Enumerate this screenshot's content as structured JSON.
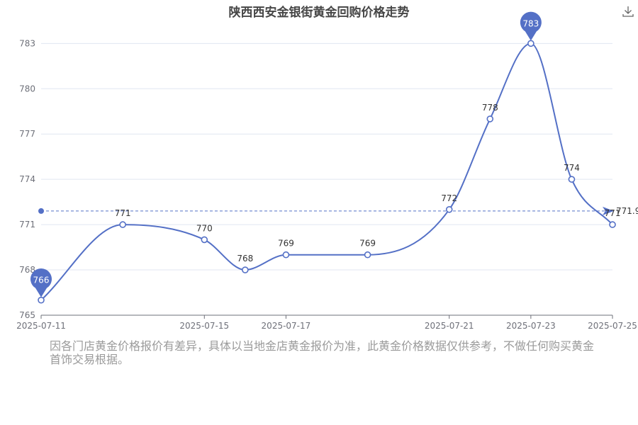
{
  "chart_data": {
    "type": "line",
    "title": "陕西西安金银街黄金回购价格走势",
    "x": [
      "2025-07-11",
      "2025-07-13",
      "2025-07-15",
      "2025-07-16",
      "2025-07-17",
      "2025-07-19",
      "2025-07-21",
      "2025-07-22",
      "2025-07-23",
      "2025-07-24",
      "2025-07-25"
    ],
    "values": [
      766,
      771,
      770,
      768,
      769,
      769,
      772,
      778,
      783,
      774,
      771
    ],
    "x_tick_labels": [
      "2025-07-11",
      "2025-07-15",
      "2025-07-17",
      "2025-07-21",
      "2025-07-23",
      "2025-07-25"
    ],
    "y_ticks": [
      765,
      768,
      771,
      774,
      777,
      780,
      783
    ],
    "ylim": [
      765,
      784
    ],
    "xlim": [
      "2025-07-11",
      "2025-07-25"
    ],
    "smooth": true,
    "grid": true,
    "color": "#5470c6",
    "max_marker": {
      "x": "2025-07-23",
      "value": 783,
      "label": "783"
    },
    "min_marker": {
      "x": "2025-07-11",
      "value": 766,
      "label": "766"
    },
    "average_line": {
      "value": 771.9,
      "label": "771.9"
    }
  },
  "note": "因各门店黄金价格报价有差异，具体以当地金店黄金报价为准，此黄金价格数据仅供参考，不做任何购买黄金首饰交易根据。",
  "toolbar": {
    "download_icon": "download-icon"
  }
}
